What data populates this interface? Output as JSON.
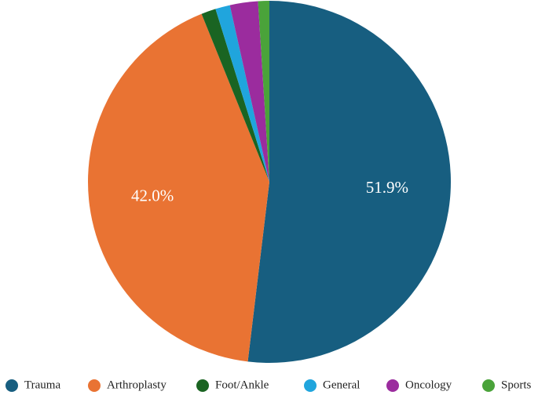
{
  "chart_data": {
    "type": "pie",
    "labels": [
      "Trauma",
      "Arthroplasty",
      "Foot/Ankle",
      "General",
      "Oncology",
      "Sports"
    ],
    "values": [
      51.9,
      42.0,
      1.3,
      1.3,
      2.5,
      1.0
    ],
    "colors": [
      "#175e80",
      "#e97333",
      "#1a6422",
      "#20a5dd",
      "#9b2c9e",
      "#4aa33a"
    ],
    "data_labels": [
      "51.9%",
      "42.0%",
      "",
      "",
      "",
      ""
    ],
    "start_angle_deg": 0,
    "direction": "clockwise",
    "legend": {
      "position": "bottom",
      "entries": [
        "Trauma",
        "Arthroplasty",
        "Foot/Ankle",
        "General",
        "Oncology",
        "Sports"
      ]
    }
  }
}
